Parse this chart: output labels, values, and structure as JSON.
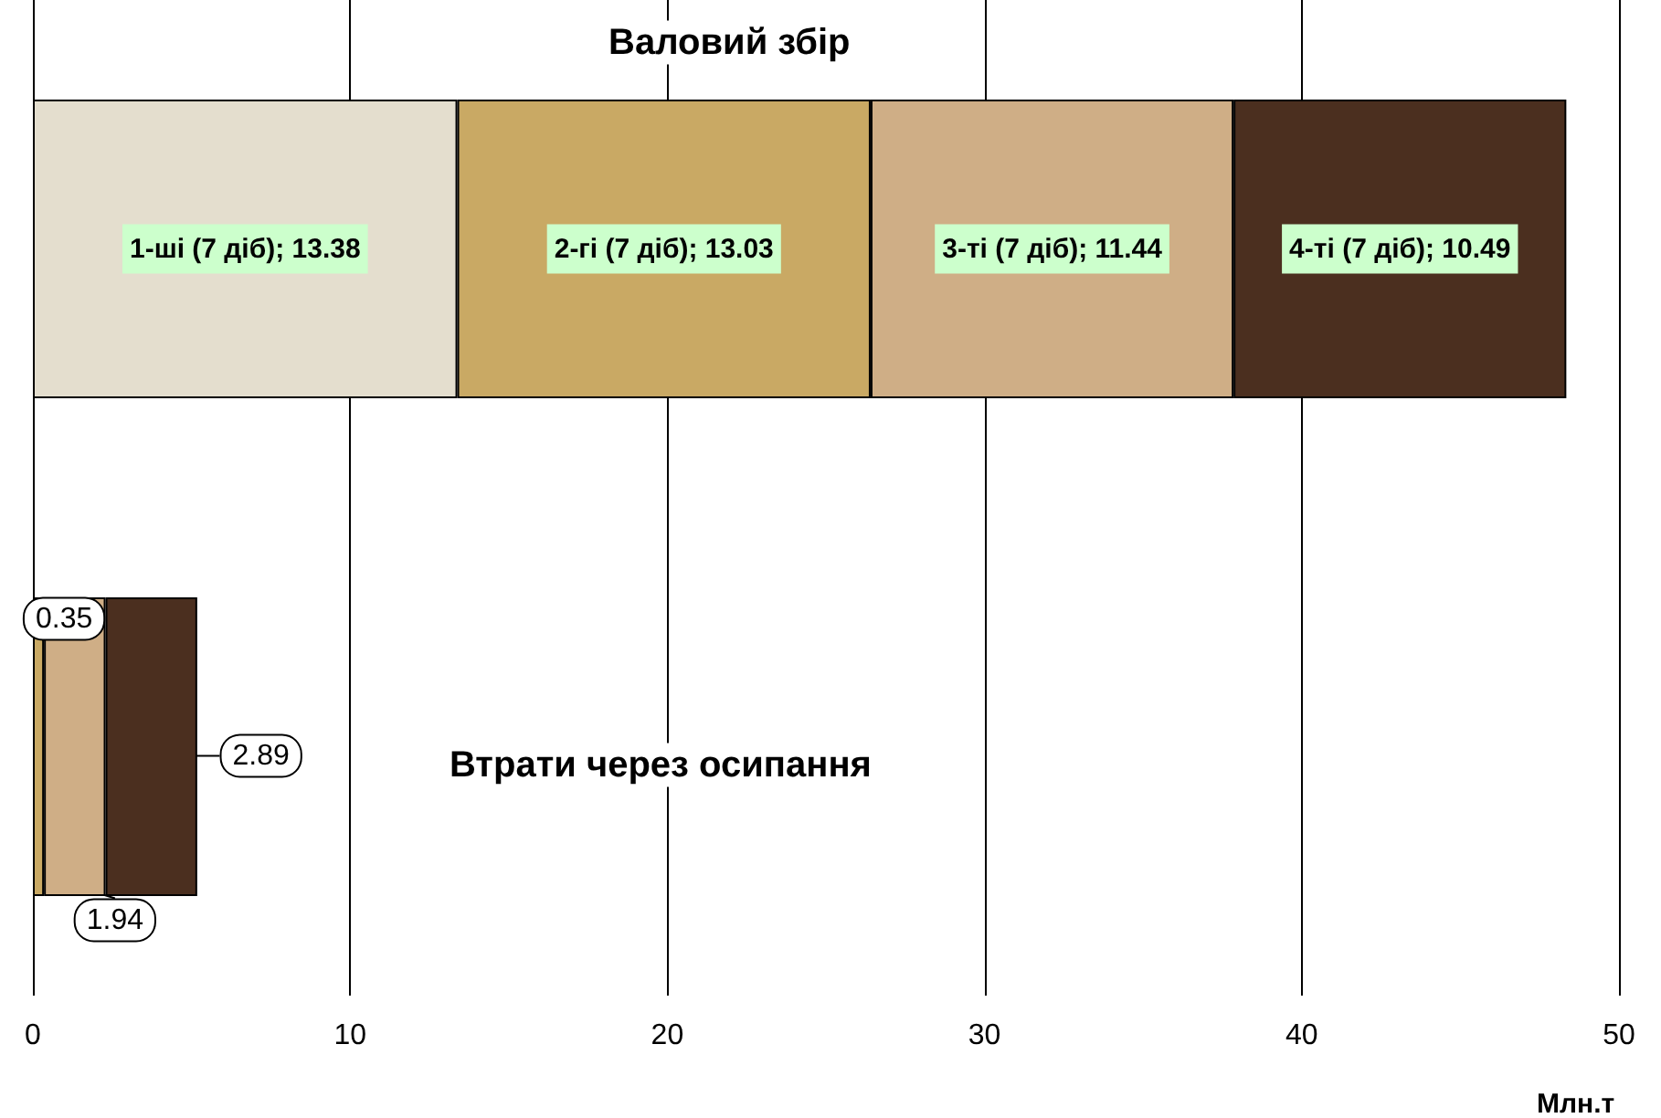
{
  "chart_data": {
    "type": "bar",
    "orientation": "horizontal",
    "stacked": true,
    "categories": [
      "Валовий збір",
      "Втрати через осипання"
    ],
    "series": [
      {
        "name": "1-ші (7 діб)",
        "color": "#e4dece",
        "values": [
          13.38,
          null
        ],
        "value_labels": [
          "; 13.38",
          null
        ]
      },
      {
        "name": "2-гі (7 діб)",
        "color": "#c9a964",
        "values": [
          13.03,
          0.35
        ],
        "value_labels": [
          "; 13.03",
          "0.35"
        ]
      },
      {
        "name": "3-ті (7 діб)",
        "color": "#cfae86",
        "values": [
          11.44,
          1.94
        ],
        "value_labels": [
          "; 11.44",
          "1.94"
        ]
      },
      {
        "name": "4-ті (7 діб)",
        "color": "#4b2f1f",
        "values": [
          10.49,
          2.89
        ],
        "value_labels": [
          "; 10.49",
          "2.89"
        ]
      }
    ],
    "xlim": [
      0,
      50
    ],
    "xticks": [
      0,
      10,
      20,
      30,
      40,
      50
    ],
    "xlabel": "Млн.т",
    "grid": "x",
    "legend": false
  }
}
